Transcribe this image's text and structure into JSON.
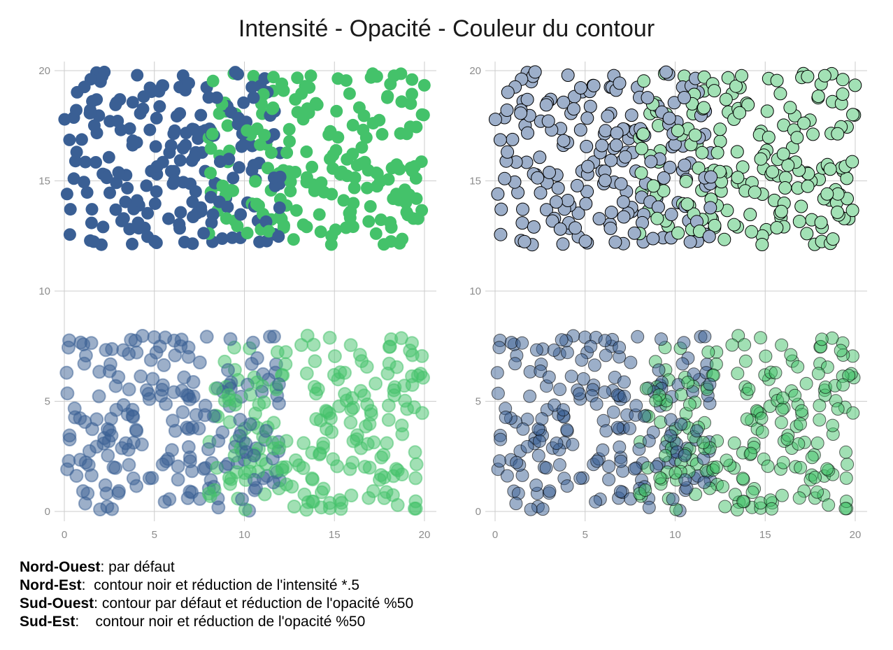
{
  "title": "Intensité - Opacité - Couleur du contour",
  "caption": [
    {
      "key": "Nord-Ouest",
      "text": ": par défaut"
    },
    {
      "key": "Nord-Est",
      "text": ":  contour noir et réduction de l'intensité *.5"
    },
    {
      "key": "Sud-Ouest",
      "text": ": contour par défaut et réduction de l'opacité %50"
    },
    {
      "key": "Sud-Est",
      "text": ":    contour noir et réduction de l'opacité %50"
    }
  ],
  "colors": {
    "blue": "#3a5f94",
    "green": "#44c26a",
    "grid": "#cccccc",
    "outline": "#000000"
  },
  "chart_data": [
    {
      "type": "scatter",
      "panel": "Nord-Ouest",
      "variant": "default",
      "xlim": [
        0,
        20
      ],
      "ylim": [
        0,
        20
      ],
      "xticks": [
        0,
        5,
        10,
        15,
        20
      ],
      "yticks": [
        0,
        5,
        10,
        15,
        20
      ],
      "grid": true,
      "series": [
        {
          "color": "blue",
          "x_range": [
            0,
            12
          ],
          "y_range": [
            12.1,
            20
          ],
          "n": 200
        },
        {
          "color": "green",
          "x_range": [
            8,
            20
          ],
          "y_range": [
            12.1,
            20
          ],
          "n": 200
        }
      ]
    },
    {
      "type": "scatter",
      "panel": "Nord-Est",
      "variant": "outline_half_intensity",
      "xlim": [
        0,
        20
      ],
      "ylim": [
        0,
        20
      ],
      "xticks": [
        0,
        5,
        10,
        15,
        20
      ],
      "yticks": [
        0,
        5,
        10,
        15,
        20
      ],
      "grid": true,
      "series": [
        {
          "color": "blue",
          "x_range": [
            0,
            12
          ],
          "y_range": [
            12.1,
            20
          ],
          "n": 200
        },
        {
          "color": "green",
          "x_range": [
            8,
            20
          ],
          "y_range": [
            12.1,
            20
          ],
          "n": 200
        }
      ]
    },
    {
      "type": "scatter",
      "panel": "Sud-Ouest",
      "variant": "half_opacity",
      "xlim": [
        0,
        20
      ],
      "ylim": [
        0,
        20
      ],
      "xticks": [
        0,
        5,
        10,
        15,
        20
      ],
      "yticks": [
        0,
        5,
        10,
        15,
        20
      ],
      "grid": true,
      "series": [
        {
          "color": "blue",
          "x_range": [
            0,
            12
          ],
          "y_range": [
            0,
            8
          ],
          "n": 200
        },
        {
          "color": "green",
          "x_range": [
            8,
            20
          ],
          "y_range": [
            0,
            8
          ],
          "n": 200
        }
      ]
    },
    {
      "type": "scatter",
      "panel": "Sud-Est",
      "variant": "outline_half_opacity",
      "xlim": [
        0,
        20
      ],
      "ylim": [
        0,
        20
      ],
      "xticks": [
        0,
        5,
        10,
        15,
        20
      ],
      "yticks": [
        0,
        5,
        10,
        15,
        20
      ],
      "grid": true,
      "series": [
        {
          "color": "blue",
          "x_range": [
            0,
            12
          ],
          "y_range": [
            0,
            8
          ],
          "n": 200
        },
        {
          "color": "green",
          "x_range": [
            8,
            20
          ],
          "y_range": [
            0,
            8
          ],
          "n": 200
        }
      ]
    }
  ]
}
